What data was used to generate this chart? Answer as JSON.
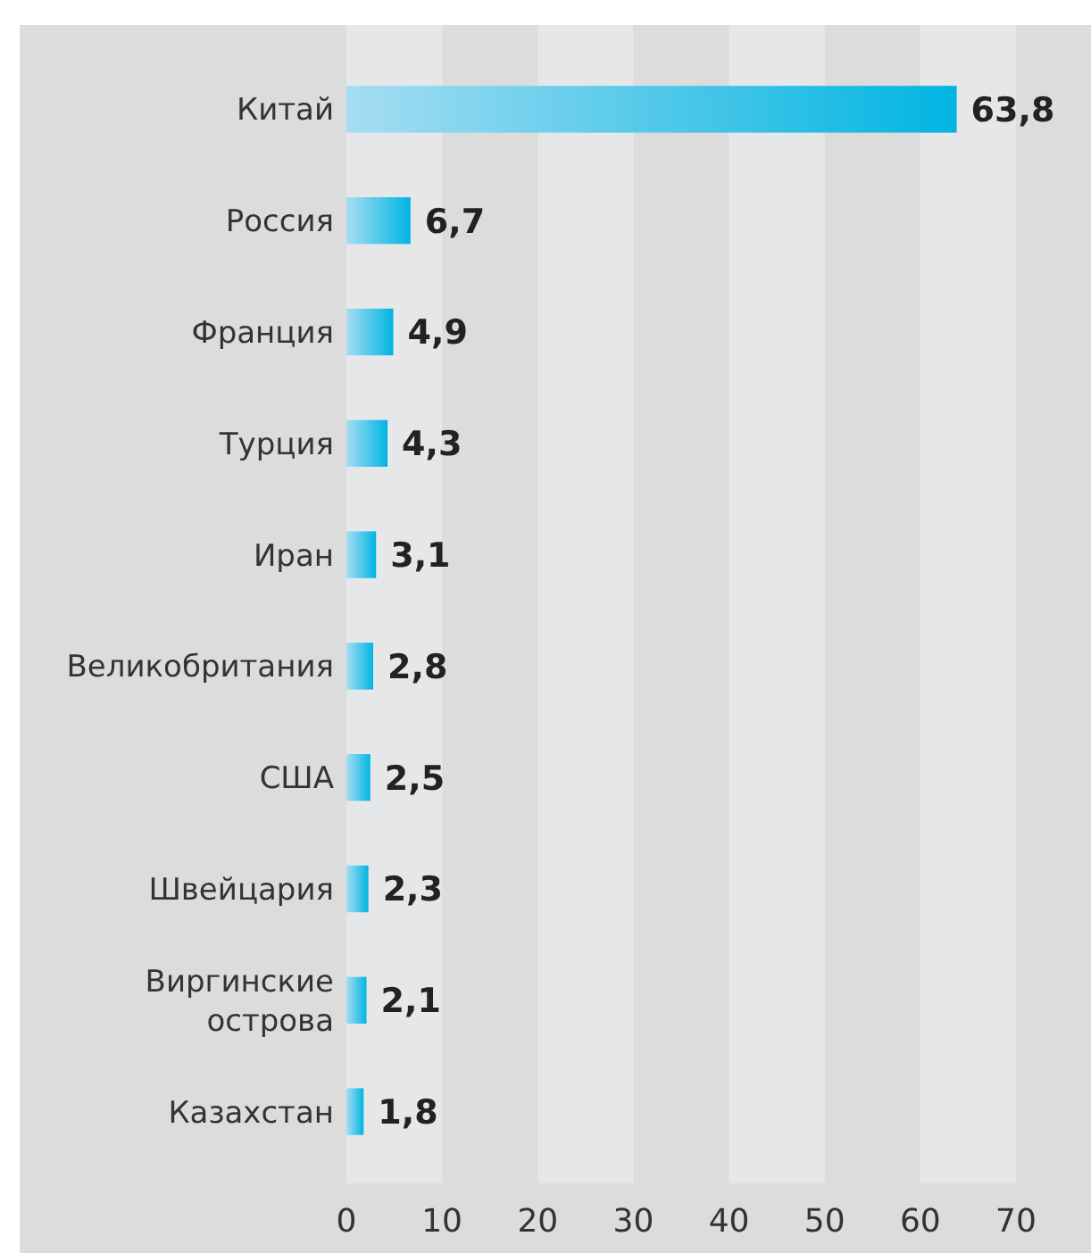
{
  "chart_data": {
    "type": "bar",
    "orientation": "horizontal",
    "categories": [
      "Китай",
      "Россия",
      "Франция",
      "Турция",
      "Иран",
      "Великобритания",
      "США",
      "Швейцария",
      "Виргинские острова",
      "Казахстан"
    ],
    "values": [
      63.8,
      6.7,
      4.9,
      4.3,
      3.1,
      2.8,
      2.5,
      2.3,
      2.1,
      1.8
    ],
    "value_labels": [
      "63,8",
      "6,7",
      "4,9",
      "4,3",
      "3,1",
      "2,8",
      "2,5",
      "2,3",
      "2,1",
      "1,8"
    ],
    "color": "#00b5e2",
    "xlim": [
      0,
      70
    ],
    "xticks": [
      0,
      10,
      20,
      30,
      40,
      50,
      60,
      70
    ]
  }
}
